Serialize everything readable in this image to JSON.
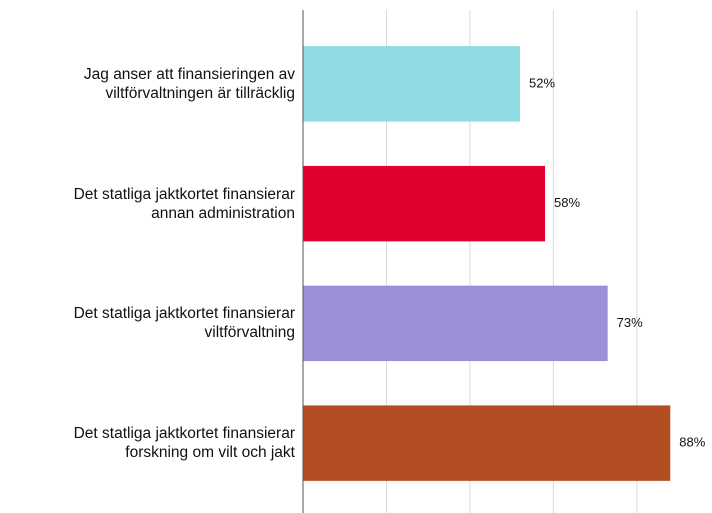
{
  "chart_data": {
    "type": "bar",
    "orientation": "horizontal",
    "categories": [
      "Jag anser att finansieringen av\nviltförvaltningen är tillräcklig",
      "Det statliga jaktkortet finansierar\nannan administration",
      "Det statliga jaktkortet finansierar\nviltförvaltning",
      "Det statliga jaktkortet finansierar\nforskning om vilt och jakt"
    ],
    "values": [
      52,
      58,
      73,
      88
    ],
    "value_labels": [
      "52%",
      "58%",
      "73%",
      "88%"
    ],
    "colors": [
      "#8fdbe3",
      "#e1002f",
      "#9a90d8",
      "#b54d23"
    ],
    "xlim": [
      0,
      98
    ],
    "xticks": [
      20,
      40,
      60,
      80
    ],
    "grid": true
  }
}
